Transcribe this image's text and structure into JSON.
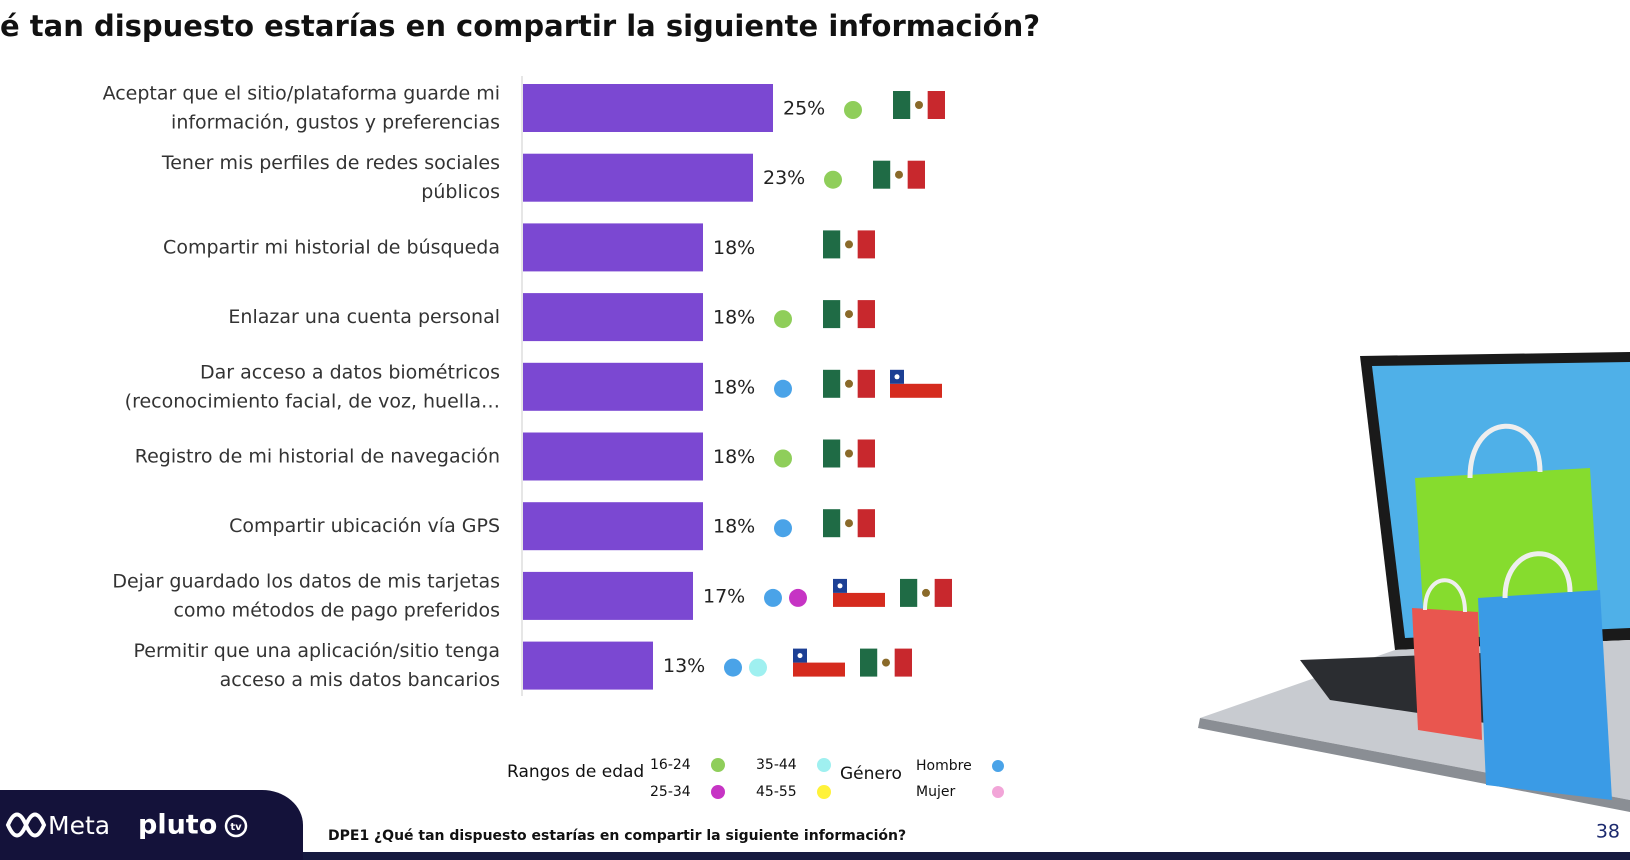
{
  "chart_data": {
    "type": "bar",
    "orientation": "horizontal",
    "title": "é tan dispuesto estarías en compartir la siguiente información?",
    "categories": [
      [
        "Aceptar que el sitio/plataforma guarde mi",
        "información, gustos y preferencias"
      ],
      [
        "Tener mis perfiles de redes sociales",
        "públicos"
      ],
      [
        "Compartir mi historial de búsqueda"
      ],
      [
        "Enlazar una cuenta personal"
      ],
      [
        "Dar acceso a datos biométricos",
        "(reconocimiento facial, de voz, huella…"
      ],
      [
        "Registro de mi historial de navegación"
      ],
      [
        "Compartir ubicación vía GPS"
      ],
      [
        "Dejar guardado los datos de mis tarjetas",
        "como métodos de pago preferidos"
      ],
      [
        "Permitir que una aplicación/sitio tenga",
        "acceso a mis datos bancarios"
      ]
    ],
    "values": [
      25,
      23,
      18,
      18,
      18,
      18,
      18,
      17,
      13
    ],
    "value_labels": [
      "25%",
      "23%",
      "18%",
      "18%",
      "18%",
      "18%",
      "18%",
      "17%",
      "13%"
    ],
    "color": "#7b48d2",
    "markers": [
      {
        "dots": [
          "#8fce5a"
        ],
        "flags": [
          {
            "layout": "vertical",
            "colors": [
              "#1f6b45",
              "#ffffff",
              "#c8282d"
            ]
          }
        ]
      },
      {
        "dots": [
          "#8fce5a"
        ],
        "flags": [
          {
            "layout": "vertical",
            "colors": [
              "#1f6b45",
              "#ffffff",
              "#c8282d"
            ]
          }
        ]
      },
      {
        "dots": [],
        "flags": [
          {
            "layout": "vertical",
            "colors": [
              "#1f6b45",
              "#ffffff",
              "#c8282d"
            ]
          }
        ]
      },
      {
        "dots": [
          "#8fce5a"
        ],
        "flags": [
          {
            "layout": "vertical",
            "colors": [
              "#1f6b45",
              "#ffffff",
              "#c8282d"
            ]
          }
        ]
      },
      {
        "dots": [
          "#4aa3e8"
        ],
        "flags": [
          {
            "layout": "vertical",
            "colors": [
              "#1f6b45",
              "#ffffff",
              "#c8282d"
            ]
          },
          {
            "layout": "canton",
            "colors": [
              "#1c3f94",
              "#ffffff",
              "#d52b1e"
            ]
          }
        ]
      },
      {
        "dots": [
          "#8fce5a"
        ],
        "flags": [
          {
            "layout": "vertical",
            "colors": [
              "#1f6b45",
              "#ffffff",
              "#c8282d"
            ]
          }
        ]
      },
      {
        "dots": [
          "#4aa3e8"
        ],
        "flags": [
          {
            "layout": "vertical",
            "colors": [
              "#1f6b45",
              "#ffffff",
              "#c8282d"
            ]
          }
        ]
      },
      {
        "dots": [
          "#4aa3e8",
          "#c634c4"
        ],
        "flags": [
          {
            "layout": "canton",
            "colors": [
              "#1c3f94",
              "#ffffff",
              "#d52b1e"
            ]
          },
          {
            "layout": "vertical",
            "colors": [
              "#1f6b45",
              "#ffffff",
              "#c8282d"
            ]
          }
        ]
      },
      {
        "dots": [
          "#4aa3e8",
          "#9ff0f0"
        ],
        "flags": [
          {
            "layout": "canton",
            "colors": [
              "#1c3f94",
              "#ffffff",
              "#d52b1e"
            ]
          },
          {
            "layout": "vertical",
            "colors": [
              "#1f6b45",
              "#ffffff",
              "#c8282d"
            ]
          }
        ]
      }
    ],
    "legend": {
      "age_title": "Rangos de edad",
      "age": [
        {
          "label": "16-24",
          "color": "#8fce5a"
        },
        {
          "label": "25-34",
          "color": "#c634c4"
        },
        {
          "label": "35-44",
          "color": "#9ff0f0"
        },
        {
          "label": "45-55",
          "color": "#fff23a"
        }
      ],
      "gender_title": "Género",
      "gender": [
        {
          "label": "Hombre",
          "color": "#4aa3e8"
        },
        {
          "label": "Mujer",
          "color": "#f2a5d8"
        }
      ]
    }
  },
  "footer": {
    "brand1": "Meta",
    "brand2": "pluto",
    "brand2_badge": "tv",
    "question": "DPE1 ¿Qué tan dispuesto estarías en compartir la siguiente información?",
    "page": "38"
  }
}
